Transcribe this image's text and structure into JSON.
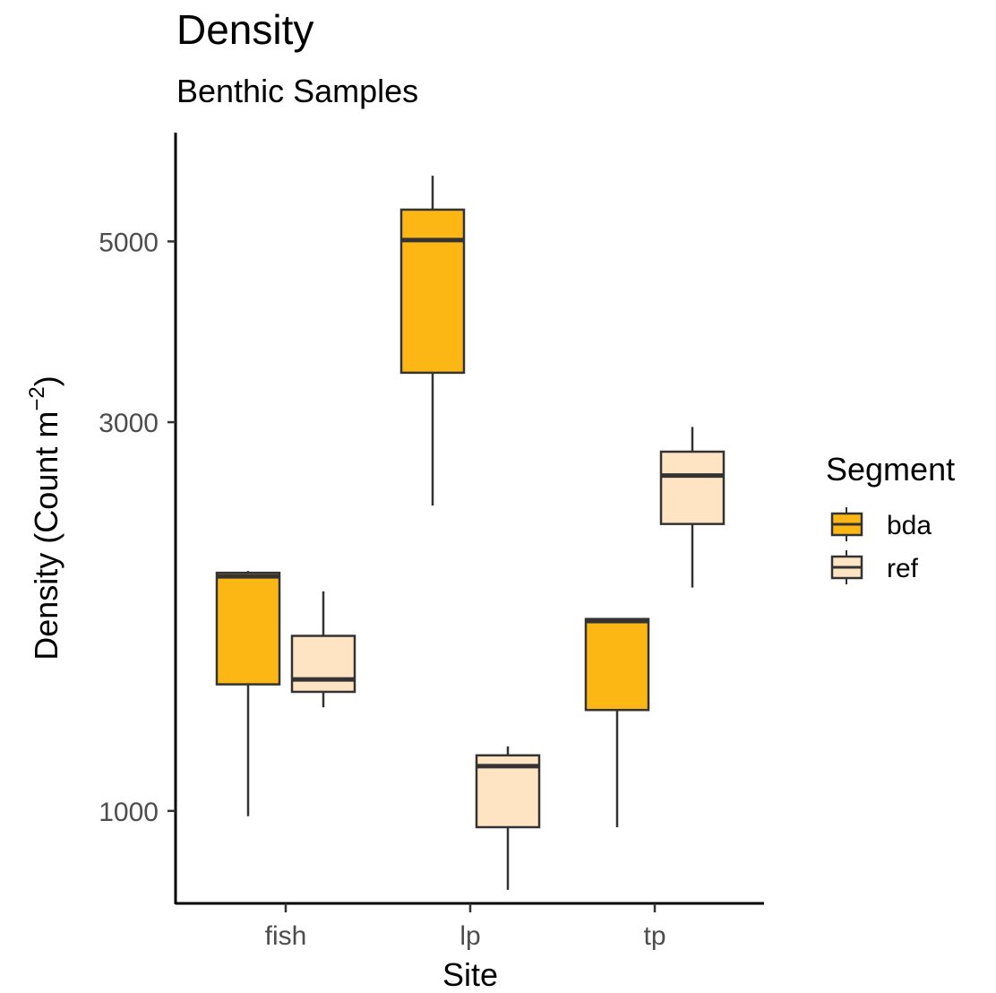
{
  "chart_data": {
    "type": "box",
    "title": "Density",
    "subtitle": "Benthic Samples",
    "xlabel": "Site",
    "ylabel": {
      "main": "Density (Count m",
      "superscript": "−2",
      "close": ")"
    },
    "y_scale": "log10",
    "ylim": [
      770,
      6800
    ],
    "y_ticks": [
      1000,
      3000,
      5000
    ],
    "y_tick_labels": [
      "1000",
      "3000",
      "5000"
    ],
    "categories": [
      "fish",
      "lp",
      "tp"
    ],
    "legend": {
      "title": "Segment",
      "position": "right",
      "entries": [
        {
          "name": "bda",
          "color": "#FDB714"
        },
        {
          "name": "ref",
          "color": "#FFE4C4"
        }
      ]
    },
    "series": [
      {
        "name": "bda",
        "color": "#FDB714",
        "boxes": [
          {
            "category": "fish",
            "whisker_low": 985,
            "q1": 1430,
            "median": 1940,
            "q3": 1960,
            "whisker_high": 1970
          },
          {
            "category": "lp",
            "whisker_low": 2370,
            "q1": 3450,
            "median": 5020,
            "q3": 5470,
            "whisker_high": 6020
          },
          {
            "category": "tp",
            "whisker_low": 955,
            "q1": 1330,
            "median": 1710,
            "q3": 1720,
            "whisker_high": 1720
          }
        ]
      },
      {
        "name": "ref",
        "color": "#FFE4C4",
        "boxes": [
          {
            "category": "fish",
            "whisker_low": 1340,
            "q1": 1400,
            "median": 1450,
            "q3": 1640,
            "whisker_high": 1860
          },
          {
            "category": "lp",
            "whisker_low": 800,
            "q1": 955,
            "median": 1135,
            "q3": 1170,
            "whisker_high": 1200
          },
          {
            "category": "tp",
            "whisker_low": 1880,
            "q1": 2250,
            "median": 2580,
            "q3": 2760,
            "whisker_high": 2960
          }
        ]
      }
    ],
    "grid": false,
    "colors": {
      "box_outline": "#333333",
      "axis_line": "#000000",
      "tick_text": "#4d4d4d"
    }
  }
}
